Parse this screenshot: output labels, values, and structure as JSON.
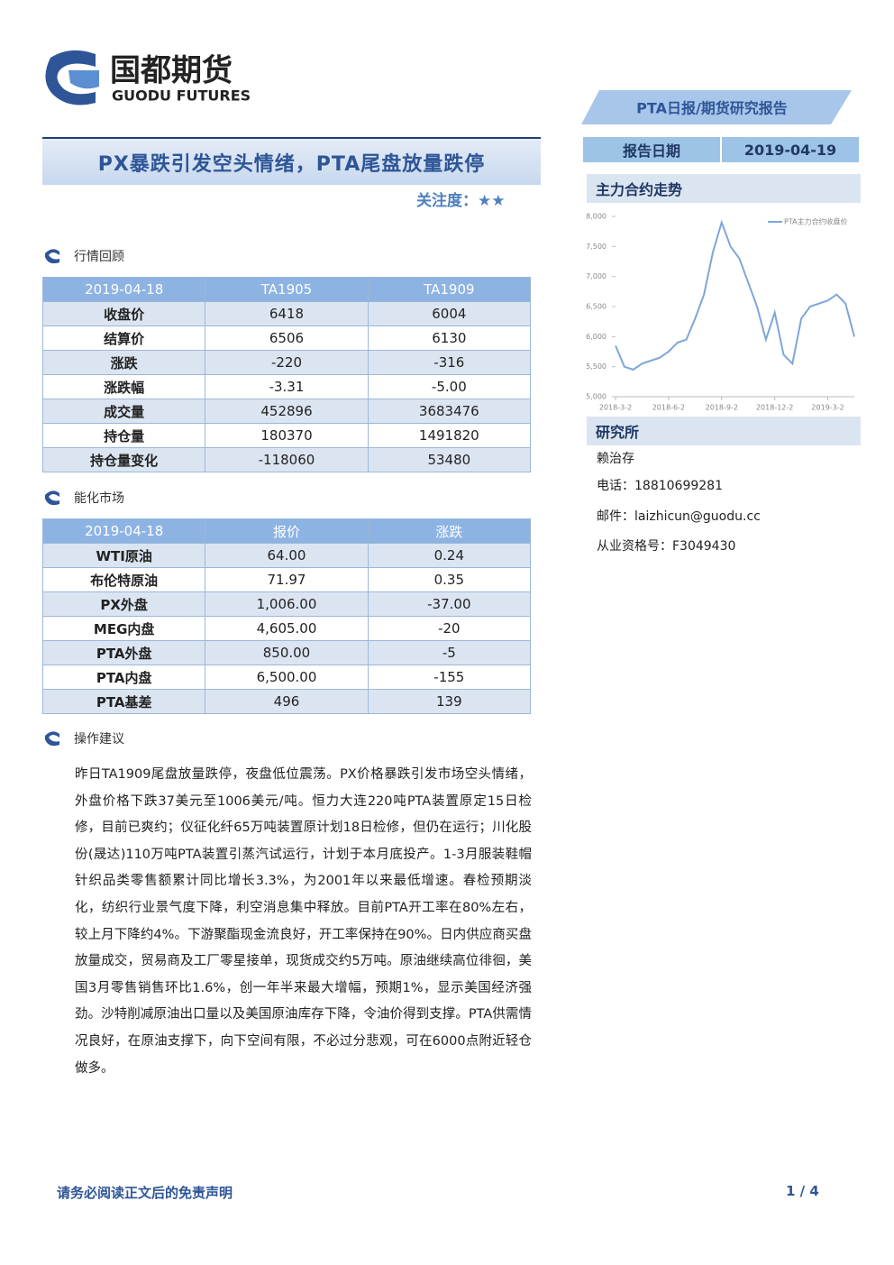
{
  "header": {
    "logo_cn": "国都期货",
    "logo_en": "GUODU FUTURES",
    "report_type": "PTA日报/期货研究报告",
    "title": "PX暴跌引发空头情绪，PTA尾盘放量跌停",
    "focus_label": "关注度：",
    "focus_stars": "★★",
    "date_label": "报告日期",
    "date": "2019-04-19"
  },
  "sections": [
    "行情回顾",
    "能化市场",
    "操作建议"
  ],
  "table1": {
    "header": [
      "2019-04-18",
      "TA1905",
      "TA1909"
    ],
    "rows": [
      [
        "收盘价",
        "6418",
        "6004"
      ],
      [
        "结算价",
        "6506",
        "6130"
      ],
      [
        "涨跌",
        "-220",
        "-316"
      ],
      [
        "涨跌幅",
        "-3.31",
        "-5.00"
      ],
      [
        "成交量",
        "452896",
        "3683476"
      ],
      [
        "持仓量",
        "180370",
        "1491820"
      ],
      [
        "持仓量变化",
        "-118060",
        "53480"
      ]
    ]
  },
  "table2": {
    "header": [
      "2019-04-18",
      "报价",
      "涨跌"
    ],
    "rows": [
      [
        "WTI原油",
        "64.00",
        "0.24"
      ],
      [
        "布伦特原油",
        "71.97",
        "0.35"
      ],
      [
        "PX外盘",
        "1,006.00",
        "-37.00"
      ],
      [
        "MEG内盘",
        "4,605.00",
        "-20"
      ],
      [
        "PTA外盘",
        "850.00",
        "-5"
      ],
      [
        "PTA内盘",
        "6,500.00",
        "-155"
      ],
      [
        "PTA基差",
        "496",
        "139"
      ]
    ]
  },
  "advice": "昨日TA1909尾盘放量跌停，夜盘低位震荡。PX价格暴跌引发市场空头情绪，外盘价格下跌37美元至1006美元/吨。恒力大连220吨PTA装置原定15日检修，目前已爽约；仪征化纤65万吨装置原计划18日检修，但仍在运行；川化股份(晟达)110万吨PTA装置引蒸汽试运行，计划于本月底投产。1-3月服装鞋帽针织品类零售额累计同比增长3.3%，为2001年以来最低增速。春检预期淡化，纺织行业景气度下降，利空消息集中释放。目前PTA开工率在80%左右，较上月下降约4%。下游聚酯现金流良好，开工率保持在90%。日内供应商买盘放量成交，贸易商及工厂零星接单，现货成交约5万吨。原油继续高位徘徊，美国3月零售销售环比1.6%，创一年半来最大增幅，预期1%，显示美国经济强劲。沙特削减原油出口量以及美国原油库存下降，令油价得到支撑。PTA供需情况良好，在原油支撑下，向下空间有限，不必过分悲观，可在6000点附近轻仓做多。",
  "chart_data": {
    "type": "line",
    "title": "主力合约走势",
    "categories": [
      "2018-3-2",
      null,
      null,
      null,
      null,
      null,
      "2018-6-2",
      null,
      null,
      null,
      null,
      null,
      "2018-9-2",
      null,
      null,
      null,
      null,
      null,
      "2018-12-2",
      null,
      null,
      null,
      null,
      null,
      "2019-3-2",
      null,
      null,
      null
    ],
    "series": [
      {
        "name": "PTA主力合约收盘价",
        "color": "#7ea6d8",
        "values": [
          5850,
          5500,
          5450,
          5550,
          5600,
          5650,
          5750,
          5900,
          5950,
          6300,
          6700,
          7400,
          7900,
          7500,
          7300,
          6900,
          6500,
          5950,
          6400,
          5700,
          5550,
          6300,
          6500,
          6550,
          6600,
          6700,
          6550,
          6000
        ]
      }
    ],
    "ylim": [
      5000,
      8000
    ],
    "yticks": [
      {
        "value": 5000,
        "label": "5,000"
      },
      {
        "value": 5500,
        "label": "5,500"
      },
      {
        "value": 6000,
        "label": "6,000"
      },
      {
        "value": 6500,
        "label": "6,500"
      },
      {
        "value": 7000,
        "label": "7,000"
      },
      {
        "value": 7500,
        "label": "7,500"
      },
      {
        "value": 8000,
        "label": "8,000"
      }
    ]
  },
  "research": {
    "title": "研究所",
    "name": "赖治存",
    "phone": "电话：18810699281",
    "email": "邮件：laizhicun@guodu.cc",
    "license": "从业资格号：F3049430"
  },
  "footer": {
    "disclaimer": "请务必阅读正文后的免责声明",
    "page": "1 / 4"
  }
}
